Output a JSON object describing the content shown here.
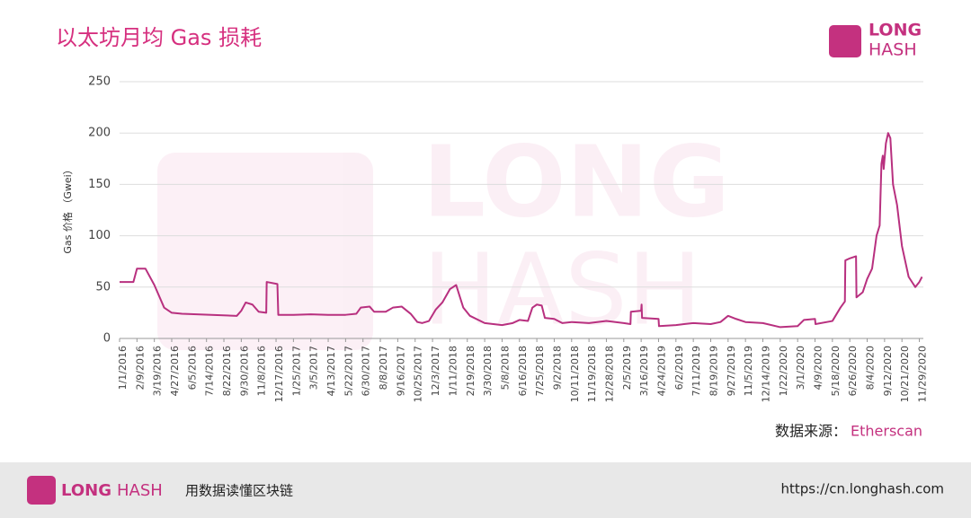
{
  "chart_data": {
    "type": "line",
    "title": "以太坊月均 Gas 损耗",
    "y_label": "Gas 价格 （Gwei）",
    "ylim": [
      0,
      250
    ],
    "yticks": [
      0,
      50,
      100,
      150,
      200,
      250
    ],
    "grid": true,
    "xlim": [
      "1/1/2016",
      "12/8/2020"
    ],
    "xticks": [
      "1/1/2016",
      "2/9/2016",
      "3/19/2016",
      "4/27/2016",
      "6/5/2016",
      "7/14/2016",
      "8/22/2016",
      "9/30/2016",
      "11/8/2016",
      "12/17/2016",
      "1/25/2017",
      "3/5/2017",
      "4/13/2017",
      "5/22/2017",
      "6/30/2017",
      "8/8/2017",
      "9/16/2017",
      "10/25/2017",
      "12/3/2017",
      "1/11/2018",
      "2/19/2018",
      "3/30/2018",
      "5/8/2018",
      "6/16/2018",
      "7/25/2018",
      "9/2/2018",
      "10/11/2018",
      "11/19/2018",
      "12/28/2018",
      "2/5/2019",
      "3/16/2019",
      "4/24/2019",
      "6/2/2019",
      "7/11/2019",
      "8/19/2019",
      "9/27/2019",
      "11/5/2019",
      "12/14/2019",
      "1/22/2020",
      "3/1/2020",
      "4/9/2020",
      "5/18/2020",
      "6/26/2020",
      "8/4/2020",
      "9/12/2020",
      "10/21/2020",
      "11/29/2020"
    ],
    "x": [
      "1/1/2016",
      "2/1/2016",
      "2/9/2016",
      "2/28/2016",
      "3/19/2016",
      "4/10/2016",
      "4/27/2016",
      "5/20/2016",
      "9/20/2016",
      "9/30/2016",
      "10/10/2016",
      "10/25/2016",
      "11/8/2016",
      "11/25/2016",
      "11/26/2016",
      "12/20/2016",
      "12/22/2016",
      "1/25/2017",
      "3/5/2017",
      "4/13/2017",
      "5/22/2017",
      "6/15/2017",
      "6/25/2017",
      "7/15/2017",
      "7/25/2017",
      "8/20/2017",
      "9/5/2017",
      "9/25/2017",
      "10/15/2017",
      "10/30/2017",
      "11/10/2017",
      "11/25/2017",
      "12/10/2017",
      "12/25/2017",
      "1/11/2018",
      "1/25/2018",
      "2/10/2018",
      "2/25/2018",
      "3/30/2018",
      "5/8/2018",
      "6/1/2018",
      "6/16/2018",
      "7/5/2018",
      "7/15/2018",
      "7/25/2018",
      "8/5/2018",
      "8/12/2018",
      "9/2/2018",
      "9/20/2018",
      "10/11/2018",
      "11/19/2018",
      "12/28/2018",
      "2/5/2019",
      "2/20/2019",
      "2/21/2019",
      "3/16/2019",
      "3/17/2019",
      "3/18/2019",
      "4/24/2019",
      "4/25/2019",
      "6/2/2019",
      "7/11/2019",
      "8/19/2019",
      "9/10/2019",
      "9/27/2019",
      "10/15/2019",
      "11/5/2019",
      "12/14/2019",
      "1/22/2020",
      "3/1/2020",
      "3/15/2020",
      "4/9/2020",
      "4/10/2020",
      "5/18/2020",
      "6/5/2020",
      "6/15/2020",
      "6/16/2020",
      "6/26/2020",
      "7/10/2020",
      "7/11/2020",
      "7/25/2020",
      "8/4/2020",
      "8/15/2020",
      "8/25/2020",
      "9/1/2020",
      "9/5/2020",
      "9/8/2020",
      "9/10/2020",
      "9/15/2020",
      "9/20/2020",
      "9/25/2020",
      "10/1/2020",
      "10/10/2020",
      "10/21/2020",
      "11/5/2020",
      "11/20/2020",
      "11/29/2020",
      "12/5/2020"
    ],
    "series": [
      {
        "name": "Gas",
        "color": "#b8307f",
        "values": [
          55,
          55,
          68,
          68,
          52,
          30,
          25,
          24,
          22,
          27,
          35,
          33,
          26,
          25,
          55,
          53,
          23,
          23,
          23.5,
          23,
          23,
          24,
          30,
          31,
          26,
          26,
          30,
          31,
          24,
          16,
          15,
          17,
          28,
          35,
          48,
          52,
          30,
          22,
          15,
          13,
          15,
          18,
          17,
          30,
          33,
          32,
          20,
          19,
          15,
          16,
          15,
          17,
          15,
          14,
          26,
          27,
          33,
          20,
          19,
          12,
          13,
          15,
          14,
          16,
          22,
          19,
          16,
          15,
          11,
          12,
          18,
          19,
          14,
          17,
          30,
          36,
          76,
          78,
          80,
          40,
          45,
          58,
          68,
          100,
          110,
          170,
          178,
          165,
          190,
          200,
          195,
          150,
          130,
          90,
          60,
          50,
          55,
          60
        ]
      }
    ]
  },
  "logo": [
    "LONG",
    "HASH"
  ],
  "watermark": [
    "LONG",
    "HASH"
  ],
  "source": {
    "label": "数据来源：",
    "name": "Etherscan"
  },
  "footer": {
    "brand": [
      "LONG",
      "HASH"
    ],
    "slogan": "用数据读懂区块链",
    "url": "https://cn.longhash.com"
  }
}
